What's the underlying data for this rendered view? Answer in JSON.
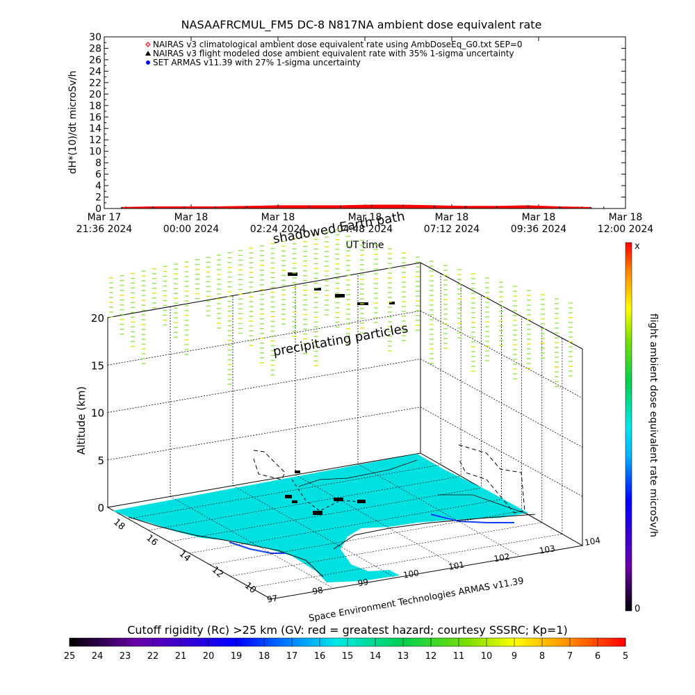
{
  "chart_data": [
    {
      "type": "line",
      "title": "NASAAFRCMUL_FM5 DC-8   N817NA ambient dose equivalent rate",
      "ylabel": "dH*(10)/dt microSv/h",
      "xlabel": "UT time",
      "ylim": [
        0,
        30
      ],
      "yticks": [
        "0",
        "2",
        "4",
        "6",
        "8",
        "10",
        "12",
        "14",
        "16",
        "18",
        "20",
        "22",
        "24",
        "26",
        "28",
        "30"
      ],
      "xticks": [
        {
          "date": "Mar 17",
          "time": "21:36 2024"
        },
        {
          "date": "Mar 18",
          "time": "00:00 2024"
        },
        {
          "date": "Mar 18",
          "time": "02:24 2024"
        },
        {
          "date": "Mar 18",
          "time": "04:48 2024"
        },
        {
          "date": "Mar 18",
          "time": "07:12 2024"
        },
        {
          "date": "Mar 18",
          "time": "09:36 2024"
        },
        {
          "date": "Mar 18",
          "time": "12:00 2024"
        }
      ],
      "legend": [
        {
          "marker": "diamond",
          "color": "#ff0000",
          "label": "NAIRAS v3 climatological ambient dose equivalent rate using AmbDoseEq_G0.txt SEP=0"
        },
        {
          "marker": "triangle",
          "color": "#000000",
          "label": "NAIRAS v3 flight modeled dose ambient equivalent rate with 35% 1-sigma uncertainty"
        },
        {
          "marker": "dot",
          "color": "#0000ff",
          "label": "SET ARMAS v11.39 with 27% 1-sigma uncertainty"
        }
      ],
      "series": [
        {
          "color": "#ff0000",
          "values": [
            0.2,
            0.3,
            0.3,
            0.3,
            0.4,
            0.5,
            0.5,
            0.5,
            0.6,
            0.6,
            0.5,
            0.4,
            0.4,
            0.5,
            0.3,
            0.2
          ]
        }
      ]
    },
    {
      "type": "scatter",
      "zlabel": "Altitude (km)",
      "zticks": [
        "0",
        "5",
        "10",
        "15",
        "20"
      ],
      "yticks": [
        "18",
        "16",
        "14",
        "12",
        "10"
      ],
      "xticks": [
        "97",
        "98",
        "99",
        "100",
        "101",
        "102",
        "103",
        "104"
      ],
      "annotations": [
        "shadowed Earth path",
        "precipitating particles"
      ],
      "source": "Space Environment Technologies ARMAS v11.39",
      "colorbar": {
        "label": "flight ambient dose equivalent rate microSv/h",
        "max_label": "x",
        "min_label": "0"
      }
    },
    {
      "type": "heatmap",
      "title": "Cutoff rigidity (Rc) >25 km (GV: red = greatest hazard; courtesy SSSRC; Kp=1)",
      "ticks": [
        "25",
        "24",
        "23",
        "22",
        "21",
        "20",
        "19",
        "18",
        "17",
        "16",
        "15",
        "14",
        "13",
        "12",
        "11",
        "10",
        "9",
        "8",
        "7",
        "6",
        "5"
      ]
    }
  ]
}
